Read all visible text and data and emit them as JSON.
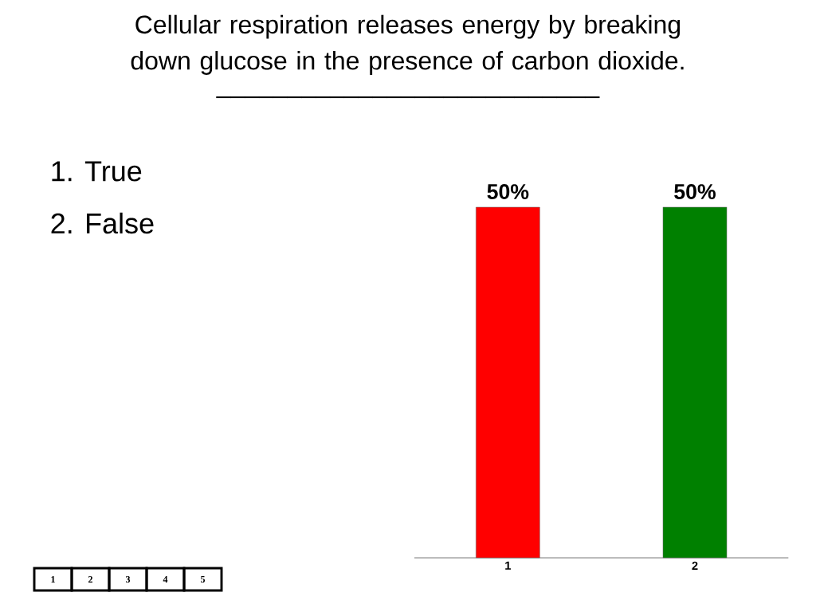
{
  "chart_data": {
    "type": "bar",
    "title": "Cellular respiration releases energy by breaking down glucose in the presence of carbon dioxide.",
    "subtitle": "___________________________",
    "categories": [
      "1",
      "2"
    ],
    "values": [
      50,
      50
    ],
    "colors": [
      "#ff0000",
      "#008000"
    ],
    "value_labels": [
      "50%",
      "50%"
    ],
    "annotations": [
      "1.  True",
      "2.  False",
      "1",
      "2",
      "3",
      "4",
      "5"
    ]
  }
}
